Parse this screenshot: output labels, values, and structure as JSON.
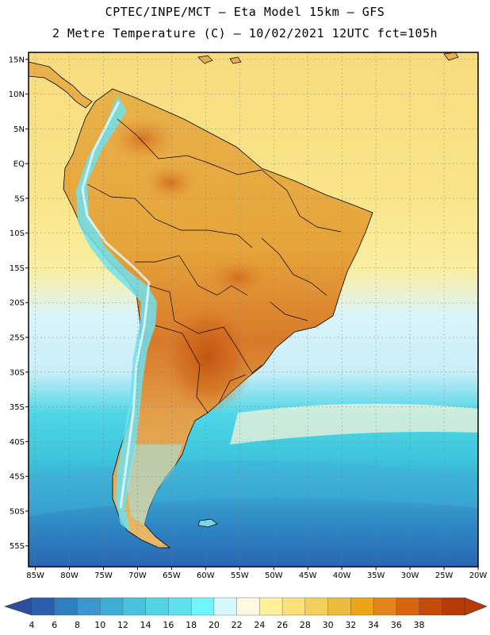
{
  "header": {
    "title_line1": "CPTEC/INPE/MCT –  Eta Model 15km – GFS",
    "title_line2": "2 Metre Temperature (C) – 10/02/2021 12UTC fct=105h"
  },
  "map": {
    "lat_labels": [
      "15N",
      "10N",
      "5N",
      "EQ",
      "5S",
      "10S",
      "15S",
      "20S",
      "25S",
      "30S",
      "35S",
      "40S",
      "45S",
      "50S",
      "55S"
    ],
    "lon_labels": [
      "85W",
      "80W",
      "75W",
      "70W",
      "65W",
      "60W",
      "55W",
      "50W",
      "45W",
      "40W",
      "35W",
      "30W",
      "25W",
      "20W"
    ],
    "lat_range": [
      -58,
      16
    ],
    "lon_range": [
      -86,
      -20
    ],
    "ocean_gradient": [
      {
        "lat": 16,
        "color": "#f7dc7e"
      },
      {
        "lat": -5,
        "color": "#f9e58a"
      },
      {
        "lat": -15,
        "color": "#fbeea0"
      },
      {
        "lat": -22,
        "color": "#d9f4fb"
      },
      {
        "lat": -30,
        "color": "#c9eef8"
      },
      {
        "lat": -36,
        "color": "#4fd6e6"
      },
      {
        "lat": -42,
        "color": "#3ec7dd"
      },
      {
        "lat": -47,
        "color": "#3aa7d2"
      },
      {
        "lat": -52,
        "color": "#2f88c4"
      },
      {
        "lat": -58,
        "color": "#2a66b3"
      }
    ]
  },
  "colorbar": {
    "levels": [
      4,
      6,
      8,
      10,
      12,
      14,
      16,
      18,
      20,
      22,
      24,
      26,
      28,
      30,
      32,
      34,
      36,
      38
    ],
    "colors": [
      "#2a5fae",
      "#2f7ebf",
      "#3a96cc",
      "#3faed6",
      "#48c2de",
      "#52d3e6",
      "#60e2ee",
      "#6ff6fb",
      "#d6f8fc",
      "#fff8e2",
      "#fef09a",
      "#fbe17a",
      "#f5cf5c",
      "#edbc3c",
      "#eda416",
      "#e3851c",
      "#d86410",
      "#c44a08",
      "#b83a04"
    ],
    "under_color": "#2a4f9e",
    "over_color": "#b83a04"
  }
}
